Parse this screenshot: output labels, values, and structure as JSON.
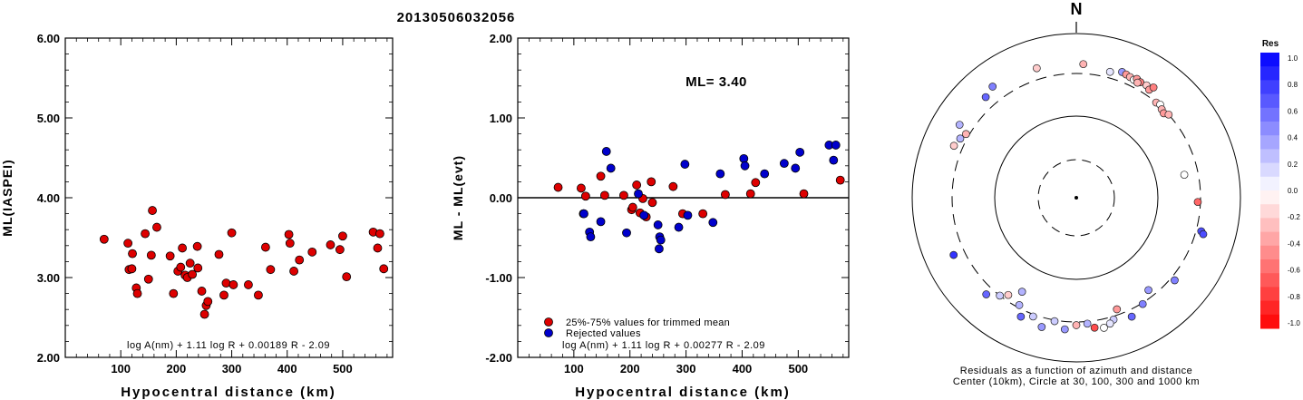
{
  "event_id": "20130506032056",
  "colors": {
    "red": "#dd0000",
    "blue": "#0000cc",
    "axis": "#000000"
  },
  "chart_data": [
    {
      "type": "scatter",
      "title": "",
      "xlabel": "Hypocentral distance (km)",
      "ylabel": "ML(IASPEI)",
      "xlim": [
        0,
        590
      ],
      "ylim": [
        2.0,
        6.0
      ],
      "xticks": [
        100,
        200,
        300,
        400,
        500
      ],
      "yticks": [
        2.0,
        3.0,
        4.0,
        5.0,
        6.0
      ],
      "ytick_labels": [
        "2.00",
        "3.00",
        "4.00",
        "5.00",
        "6.00"
      ],
      "formula": "log A(nm) + 1.11 log R + 0.00189 R - 2.09",
      "grid": false,
      "series": [
        {
          "color": "red",
          "points": [
            [
              70,
              3.48
            ],
            [
              113,
              3.43
            ],
            [
              115,
              3.1
            ],
            [
              120,
              3.11
            ],
            [
              121,
              3.3
            ],
            [
              128,
              2.87
            ],
            [
              130,
              2.8
            ],
            [
              144,
              3.55
            ],
            [
              150,
              2.98
            ],
            [
              155,
              3.28
            ],
            [
              157,
              3.84
            ],
            [
              165,
              3.63
            ],
            [
              189,
              3.27
            ],
            [
              195,
              2.8
            ],
            [
              203,
              3.08
            ],
            [
              208,
              3.13
            ],
            [
              211,
              3.37
            ],
            [
              216,
              3.03
            ],
            [
              220,
              3.0
            ],
            [
              225,
              3.18
            ],
            [
              229,
              3.04
            ],
            [
              238,
              3.39
            ],
            [
              239,
              3.12
            ],
            [
              246,
              2.83
            ],
            [
              251,
              2.54
            ],
            [
              254,
              2.65
            ],
            [
              257,
              2.7
            ],
            [
              277,
              3.29
            ],
            [
              286,
              2.78
            ],
            [
              290,
              2.93
            ],
            [
              300,
              3.56
            ],
            [
              303,
              2.91
            ],
            [
              330,
              2.91
            ],
            [
              348,
              2.78
            ],
            [
              361,
              3.38
            ],
            [
              370,
              3.1
            ],
            [
              403,
              3.54
            ],
            [
              405,
              3.43
            ],
            [
              412,
              3.08
            ],
            [
              422,
              3.22
            ],
            [
              445,
              3.32
            ],
            [
              478,
              3.41
            ],
            [
              495,
              3.35
            ],
            [
              500,
              3.52
            ],
            [
              507,
              3.01
            ],
            [
              555,
              3.57
            ],
            [
              563,
              3.37
            ],
            [
              567,
              3.55
            ],
            [
              574,
              3.11
            ]
          ]
        }
      ]
    },
    {
      "type": "scatter",
      "title": "",
      "xlabel": "Hypocentral distance (km)",
      "ylabel": "ML - ML(evt)",
      "xlim": [
        0,
        590
      ],
      "ylim": [
        -2.0,
        2.0
      ],
      "xticks": [
        100,
        200,
        300,
        400,
        500
      ],
      "yticks": [
        -2.0,
        -1.0,
        0.0,
        1.0,
        2.0
      ],
      "ytick_labels": [
        "-2.00",
        "-1.00",
        "0.00",
        "1.00",
        "2.00"
      ],
      "annotation": "ML= 3.40",
      "formula": "log A(nm) + 1.11 log R + 0.00277 R - 2.09",
      "zero_line": true,
      "legend": {
        "placement": "bottom-left",
        "entries": [
          "25%-75% values for trimmed mean",
          "Rejected values"
        ]
      },
      "series": [
        {
          "name": "25%-75% values for trimmed mean",
          "color": "red",
          "points": [
            [
              72,
              0.13
            ],
            [
              113,
              0.12
            ],
            [
              117,
              -0.2
            ],
            [
              121,
              0.02
            ],
            [
              148,
              0.27
            ],
            [
              155,
              0.03
            ],
            [
              189,
              0.03
            ],
            [
              203,
              -0.15
            ],
            [
              205,
              -0.12
            ],
            [
              212,
              0.16
            ],
            [
              218,
              -0.19
            ],
            [
              223,
              -0.01
            ],
            [
              229,
              -0.24
            ],
            [
              238,
              0.2
            ],
            [
              240,
              -0.06
            ],
            [
              277,
              0.14
            ],
            [
              294,
              -0.2
            ],
            [
              330,
              -0.2
            ],
            [
              370,
              0.04
            ],
            [
              415,
              0.05
            ],
            [
              424,
              0.19
            ],
            [
              510,
              0.05
            ],
            [
              575,
              0.22
            ]
          ]
        },
        {
          "name": "Rejected values",
          "color": "blue",
          "points": [
            [
              118,
              -0.2
            ],
            [
              128,
              -0.43
            ],
            [
              130,
              -0.49
            ],
            [
              148,
              -0.3
            ],
            [
              158,
              0.58
            ],
            [
              166,
              0.37
            ],
            [
              194,
              -0.44
            ],
            [
              215,
              0.05
            ],
            [
              225,
              -0.22
            ],
            [
              250,
              -0.34
            ],
            [
              253,
              -0.49
            ],
            [
              255,
              -0.53
            ],
            [
              252,
              -0.64
            ],
            [
              287,
              -0.37
            ],
            [
              298,
              0.42
            ],
            [
              303,
              -0.22
            ],
            [
              348,
              -0.31
            ],
            [
              361,
              0.3
            ],
            [
              403,
              0.49
            ],
            [
              405,
              0.4
            ],
            [
              440,
              0.3
            ],
            [
              475,
              0.43
            ],
            [
              495,
              0.37
            ],
            [
              503,
              0.57
            ],
            [
              555,
              0.66
            ],
            [
              563,
              0.47
            ],
            [
              567,
              0.66
            ]
          ]
        }
      ]
    },
    {
      "type": "scatter",
      "subtype": "polar",
      "title": "N",
      "caption_line1": "Residuals as a function of azimuth and distance",
      "caption_line2": "Center (10km), Circle at 30, 100, 300 and 1000 km",
      "colorbar": {
        "title": "Res",
        "range": [
          -1.0,
          1.0
        ],
        "tick_labels": [
          "1.0",
          "0.8",
          "0.6",
          "0.4",
          "0.2",
          "0.0",
          "-0.2",
          "-0.4",
          "-0.6",
          "-0.8",
          "-1.0"
        ]
      },
      "points": [
        {
          "az": -37,
          "dist": 470,
          "res": 0.5
        },
        {
          "az": -17,
          "dist": 420,
          "res": -0.2
        },
        {
          "az": 3,
          "dist": 400,
          "res": -0.3
        },
        {
          "az": -58,
          "dist": 450,
          "res": 0.3
        },
        {
          "az": -67,
          "dist": 390,
          "res": -0.2
        },
        {
          "az": 15,
          "dist": 360,
          "res": 0.1
        },
        {
          "az": 20,
          "dist": 400,
          "res": 0.4
        },
        {
          "az": 22,
          "dist": 390,
          "res": -0.4
        },
        {
          "az": 24,
          "dist": 380,
          "res": -0.3
        },
        {
          "az": 26,
          "dist": 370,
          "res": 0.0
        },
        {
          "az": 27,
          "dist": 395,
          "res": -0.4
        },
        {
          "az": 29,
          "dist": 380,
          "res": -0.5
        },
        {
          "az": 28,
          "dist": 360,
          "res": -0.3
        },
        {
          "az": 32,
          "dist": 385,
          "res": -0.2
        },
        {
          "az": 34,
          "dist": 360,
          "res": -0.4
        },
        {
          "az": 35,
          "dist": 410,
          "res": -0.5
        },
        {
          "az": 40,
          "dist": 300,
          "res": -0.3
        },
        {
          "az": 42,
          "dist": 310,
          "res": 0.0
        },
        {
          "az": 44,
          "dist": 290,
          "res": -0.3
        },
        {
          "az": 46,
          "dist": 280,
          "res": -0.4
        },
        {
          "az": 48,
          "dist": 300,
          "res": -0.3
        },
        {
          "az": 78,
          "dist": 210,
          "res": 0.0
        },
        {
          "az": 92,
          "dist": 280,
          "res": -0.6
        },
        {
          "az": 105,
          "dist": 350,
          "res": 0.7
        },
        {
          "az": 106,
          "dist": 380,
          "res": 0.7
        },
        {
          "az": 130,
          "dist": 340,
          "res": 0.5
        },
        {
          "az": 142,
          "dist": 250,
          "res": 0.4
        },
        {
          "az": 148,
          "dist": 310,
          "res": 0.5
        },
        {
          "az": 155,
          "dist": 370,
          "res": 0.6
        },
        {
          "az": 160,
          "dist": 260,
          "res": -0.4
        },
        {
          "az": 163,
          "dist": 330,
          "res": 0.2
        },
        {
          "az": 165,
          "dist": 360,
          "res": 0.1
        },
        {
          "az": 168,
          "dist": 390,
          "res": 0.0
        },
        {
          "az": 172,
          "dist": 370,
          "res": -0.7
        },
        {
          "az": 175,
          "dist": 320,
          "res": 0.3
        },
        {
          "az": 180,
          "dist": 330,
          "res": -0.3
        },
        {
          "az": 185,
          "dist": 380,
          "res": 0.4
        },
        {
          "az": 190,
          "dist": 310,
          "res": 0.2
        },
        {
          "az": 195,
          "dist": 400,
          "res": 0.4
        },
        {
          "az": 200,
          "dist": 320,
          "res": 0.2
        },
        {
          "az": 205,
          "dist": 370,
          "res": 0.6
        },
        {
          "az": 208,
          "dist": 280,
          "res": 0.3
        },
        {
          "az": 215,
          "dist": 260,
          "res": -0.2
        },
        {
          "az": 218,
          "dist": 300,
          "res": 0.2
        },
        {
          "az": 223,
          "dist": 380,
          "res": 0.6
        },
        {
          "az": 210,
          "dist": 200,
          "res": 0.3
        },
        {
          "az": 245,
          "dist": 420,
          "res": 0.8
        },
        {
          "az": 297,
          "dist": 360,
          "res": 0.3
        },
        {
          "az": 300,
          "dist": 330,
          "res": -0.3
        },
        {
          "az": 318,
          "dist": 420,
          "res": 0.6
        }
      ]
    }
  ]
}
